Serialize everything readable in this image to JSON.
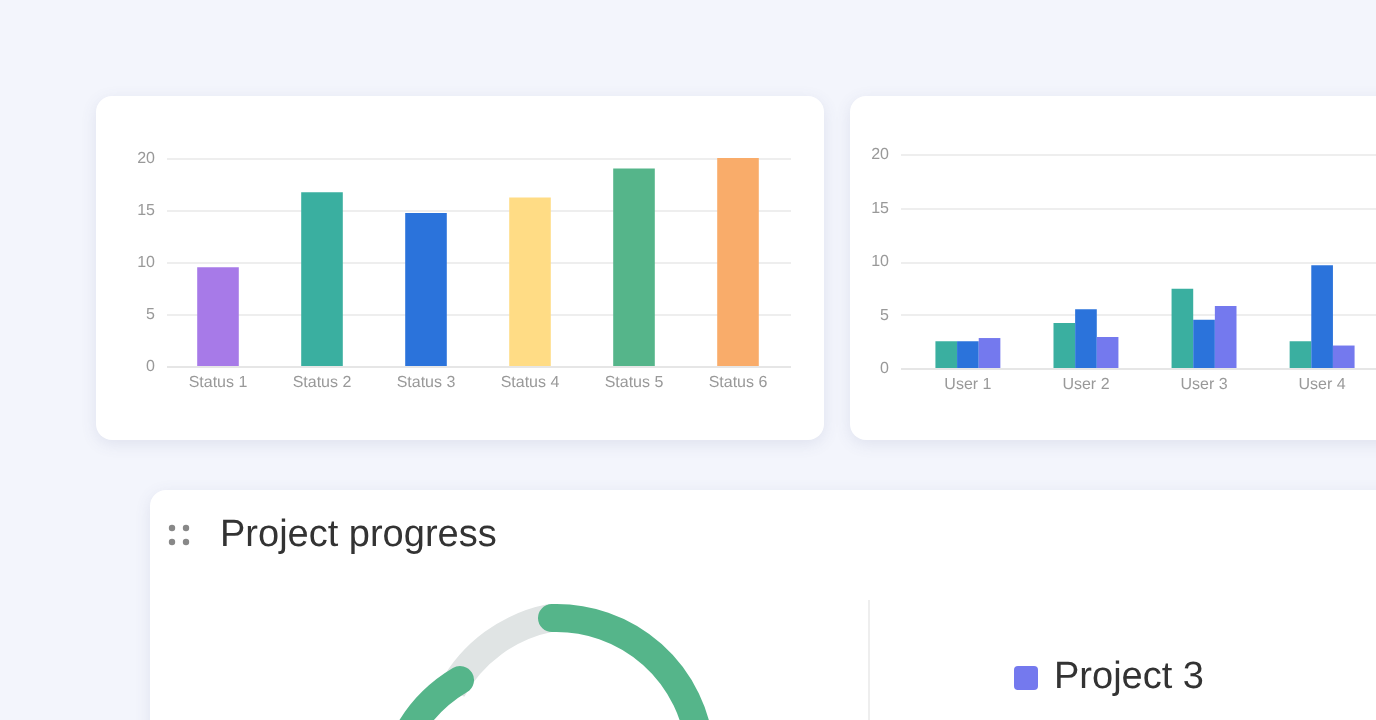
{
  "chart_data": [
    {
      "type": "bar",
      "categories": [
        "Status 1",
        "Status 2",
        "Status 3",
        "Status 4",
        "Status 5",
        "Status 6"
      ],
      "values": [
        9.5,
        16.7,
        14.7,
        16.2,
        19,
        20
      ],
      "colors": [
        "#a77ae8",
        "#3aafa0",
        "#2b73db",
        "#ffdc85",
        "#55b58a",
        "#f9ac6a"
      ],
      "ylim": [
        0,
        20
      ],
      "yticks": [
        0,
        5,
        10,
        15,
        20
      ],
      "grid": "y"
    },
    {
      "type": "bar",
      "categories": [
        "User 1",
        "User 2",
        "User 3",
        "User 4"
      ],
      "series": [
        {
          "color": "#3aafa0",
          "values": [
            2.5,
            4.2,
            7.4,
            2.5
          ]
        },
        {
          "color": "#2b73db",
          "values": [
            2.5,
            5.5,
            4.5,
            9.6
          ]
        },
        {
          "color": "#7479ee",
          "values": [
            2.8,
            2.9,
            5.8,
            2.1
          ]
        }
      ],
      "ylim": [
        0,
        20
      ],
      "yticks": [
        0,
        5,
        10,
        15,
        20
      ],
      "grid": "y"
    },
    {
      "type": "other",
      "title": "Project progress",
      "annotations": [
        "Project 3"
      ]
    }
  ]
}
